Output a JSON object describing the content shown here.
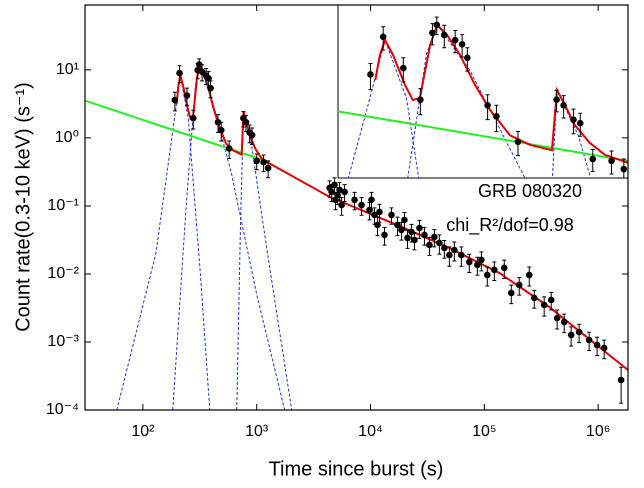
{
  "chart_data": [
    {
      "type": "scatter",
      "x_label": "Time since burst (s)",
      "y_label": "Count rate(0.3-10 keV) (s⁻¹)",
      "annotations": [
        "GRB 080320",
        "chi_R²/dof=0.98"
      ],
      "log_x": true,
      "log_y": true,
      "xlim": [
        31,
        1830000
      ],
      "ylim": [
        0.0001,
        90
      ],
      "xticks": [
        {
          "value": 100,
          "label": "10²"
        },
        {
          "value": 1000,
          "label": "10³"
        },
        {
          "value": 10000,
          "label": "10⁴"
        },
        {
          "value": 100000,
          "label": "10⁵"
        },
        {
          "value": 1000000,
          "label": "10⁶"
        }
      ],
      "yticks": [
        {
          "value": 0.0001,
          "label": "10⁻⁴"
        },
        {
          "value": 0.001,
          "label": "10⁻³"
        },
        {
          "value": 0.01,
          "label": "10⁻²"
        },
        {
          "value": 0.1,
          "label": "10⁻¹"
        },
        {
          "value": 1,
          "label": "10⁰"
        },
        {
          "value": 10,
          "label": "10¹"
        }
      ],
      "series": [
        {
          "style": "dashed",
          "color": "#2233cc",
          "x": [
            59,
            130,
            190,
            213,
            250,
            320,
            387
          ],
          "values": [
            0.0001,
            0.02,
            2,
            8.3,
            2,
            0.01,
            0.0001
          ]
        },
        {
          "style": "dashed",
          "color": "#2233cc",
          "x": [
            183,
            240,
            290,
            314,
            400,
            600,
            1000,
            1760
          ],
          "values": [
            0.0001,
            0.1,
            6,
            12,
            4,
            0.3,
            0.005,
            0.0001
          ]
        },
        {
          "style": "dashed",
          "color": "#2233cc",
          "x": [
            668,
            720,
            766,
            900,
            1200,
            2030
          ],
          "values": [
            0.0001,
            0.05,
            2.47,
            0.8,
            0.03,
            0.0001
          ]
        },
        {
          "style": "line",
          "color": "#22ee22",
          "x": [
            30,
            1300
          ],
          "values": [
            3.6,
            0.44
          ]
        },
        {
          "style": "line",
          "color": "#e00000",
          "x": [
            198,
            205,
            213,
            226,
            247,
            262,
            276,
            298,
            314,
            338,
            372,
            416,
            466,
            540,
            626,
            738,
            766,
            813,
            875,
            979,
            1094,
            1300,
            4370,
            17950,
            49300,
            135500,
            371500,
            1021000,
            1830000
          ],
          "values": [
            3.14,
            5.8,
            8.3,
            5.8,
            2.79,
            1.93,
            2.03,
            7.4,
            12,
            9.4,
            5.8,
            2.79,
            1.51,
            0.82,
            0.65,
            0.57,
            2.47,
            1.71,
            1.05,
            0.68,
            0.51,
            0.42,
            0.136,
            0.0508,
            0.0241,
            0.01035,
            0.00327,
            0.000844,
            0.000387
          ]
        },
        {
          "style": "points",
          "color": "#000000",
          "x": [
            191,
            210,
            244,
            277,
            303,
            313,
            331,
            359,
            378,
            393,
            457,
            488,
            573,
            764,
            805,
            866,
            911,
            1000,
            1150,
            1260,
            4370,
            4550,
            4830,
            4930,
            5140,
            5350,
            5570,
            5920,
            7240,
            8340,
            9800,
            10200,
            10840,
            11520,
            11990,
            13270,
            15290,
            17250,
            18700,
            19870,
            21130,
            22900,
            24330,
            26920,
            29780,
            32950,
            36410,
            40270,
            44560,
            49300,
            54550,
            62810,
            73800,
            86900,
            94200,
            106200,
            122400,
            149700,
            172500,
            202700,
            248300,
            274700,
            335800,
            387200,
            436500,
            503500,
            579400,
            680800,
            833700,
            979400,
            1130000,
            1592000
          ],
          "values": [
            3.6,
            9,
            4.2,
            1.95,
            9.9,
            12,
            9.4,
            8.3,
            7.5,
            5.4,
            1.7,
            1.3,
            0.7,
            1.95,
            1.7,
            1.2,
            1.1,
            0.46,
            0.44,
            0.36,
            0.184,
            0.161,
            0.204,
            0.123,
            0.145,
            0.172,
            0.103,
            0.161,
            0.123,
            0.103,
            0.0873,
            0.123,
            0.0738,
            0.0526,
            0.0816,
            0.0375,
            0.0738,
            0.0526,
            0.0444,
            0.0622,
            0.0338,
            0.0415,
            0.0316,
            0.0474,
            0.0375,
            0.0267,
            0.035,
            0.0286,
            0.0241,
            0.019,
            0.0225,
            0.019,
            0.015,
            0.0136,
            0.0161,
            0.00966,
            0.0115,
            0.0123,
            0.00526,
            0.00689,
            0.00966,
            0.00444,
            0.0035,
            0.00415,
            0.00225,
            0.00197,
            0.00127,
            0.0014,
            0.00107,
            0.000903,
            0.000817,
            0.000276
          ],
          "yerr": [
            1.1,
            2.5,
            1.2,
            0.6,
            2.5,
            2.5,
            2.5,
            2.2,
            2,
            1.5,
            0.5,
            0.4,
            0.2,
            0.5,
            0.45,
            0.35,
            0.3,
            0.12,
            0.12,
            0.1,
            0.05,
            0.045,
            0.055,
            0.035,
            0.04,
            0.05,
            0.03,
            0.045,
            0.035,
            0.03,
            0.025,
            0.035,
            0.02,
            0.016,
            0.024,
            0.011,
            0.02,
            0.016,
            0.013,
            0.018,
            0.01,
            0.012,
            0.009,
            0.014,
            0.011,
            0.008,
            0.01,
            0.009,
            0.007,
            0.006,
            0.007,
            0.006,
            0.0045,
            0.004,
            0.005,
            0.003,
            0.0035,
            0.0037,
            0.0016,
            0.002,
            0.003,
            0.0013,
            0.0011,
            0.0012,
            0.0007,
            0.0006,
            0.0004,
            0.00042,
            0.00032,
            0.00027,
            0.00025,
            0.00015
          ]
        }
      ]
    },
    {
      "type": "inset",
      "log_x": true,
      "log_y": true,
      "xlim": [
        150,
        1300
      ],
      "ylim": [
        0.29,
        19.5
      ]
    }
  ]
}
